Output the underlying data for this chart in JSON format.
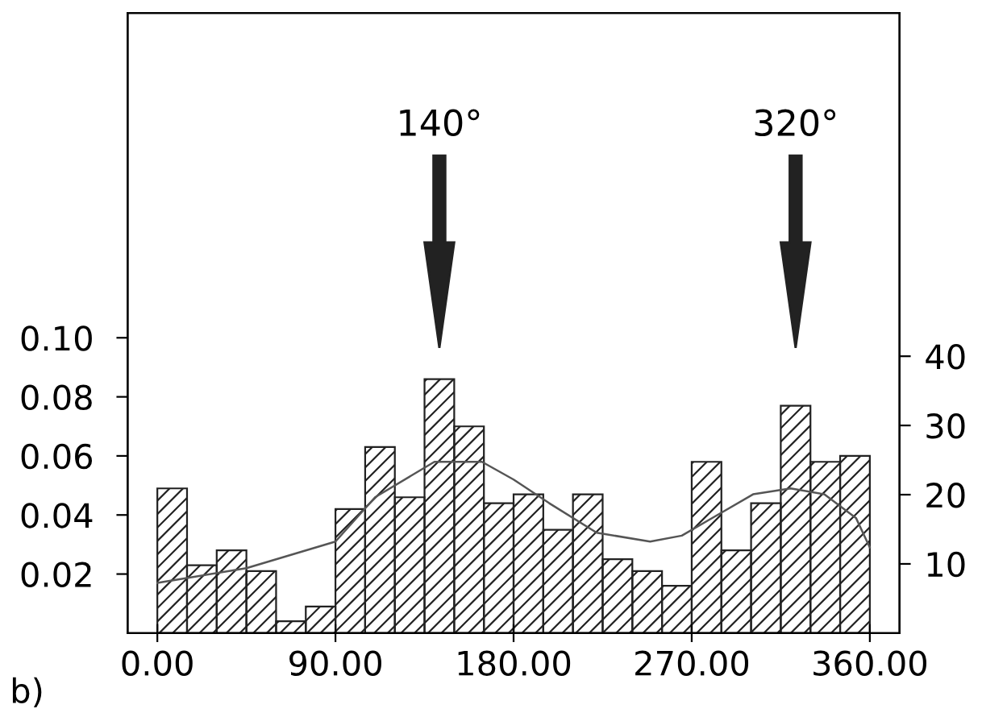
{
  "chart_data": {
    "type": "histogram",
    "bins": [
      0,
      15,
      30,
      45,
      60,
      75,
      90,
      105,
      120,
      135,
      150,
      165,
      180,
      195,
      210,
      225,
      240,
      255,
      270,
      285,
      300,
      315,
      330,
      345,
      360
    ],
    "values": [
      0.049,
      0.023,
      0.028,
      0.021,
      0.004,
      0.009,
      0.042,
      0.063,
      0.046,
      0.086,
      0.07,
      0.044,
      0.047,
      0.035,
      0.047,
      0.025,
      0.021,
      0.016,
      0.058,
      0.028,
      0.044,
      0.077,
      0.058,
      0.06
    ],
    "color": "#222222",
    "series": [
      {
        "type": "line",
        "color": "#555555",
        "x": [
          0,
          45,
          90,
          110,
          140,
          164,
          180,
          198,
          222,
          249,
          265,
          283,
          301,
          320,
          337,
          353,
          360
        ],
        "values": [
          0.017,
          0.022,
          0.031,
          0.046,
          0.058,
          0.058,
          0.052,
          0.044,
          0.034,
          0.031,
          0.033,
          0.04,
          0.047,
          0.049,
          0.047,
          0.039,
          0.029
        ]
      }
    ],
    "xlim": [
      -15,
      375
    ],
    "xticks": [
      {
        "value": 0,
        "label": "0.00"
      },
      {
        "value": 90,
        "label": "90.00"
      },
      {
        "value": 180,
        "label": "180.00"
      },
      {
        "value": 270,
        "label": "270.00"
      },
      {
        "value": 360,
        "label": "360.00"
      }
    ],
    "ylim": [
      0,
      0.21
    ],
    "yticks": [
      {
        "value": 0.02,
        "label": "0.02"
      },
      {
        "value": 0.04,
        "label": "0.04"
      },
      {
        "value": 0.06,
        "label": "0.06"
      },
      {
        "value": 0.08,
        "label": "0.08"
      },
      {
        "value": 0.1,
        "label": "0.10"
      }
    ],
    "y2lim": [
      0,
      89.6
    ],
    "y2ticks": [
      10,
      20,
      30,
      40
    ],
    "annotations": [
      "140°",
      "320°",
      "b)"
    ],
    "grid": false,
    "legend": false
  }
}
